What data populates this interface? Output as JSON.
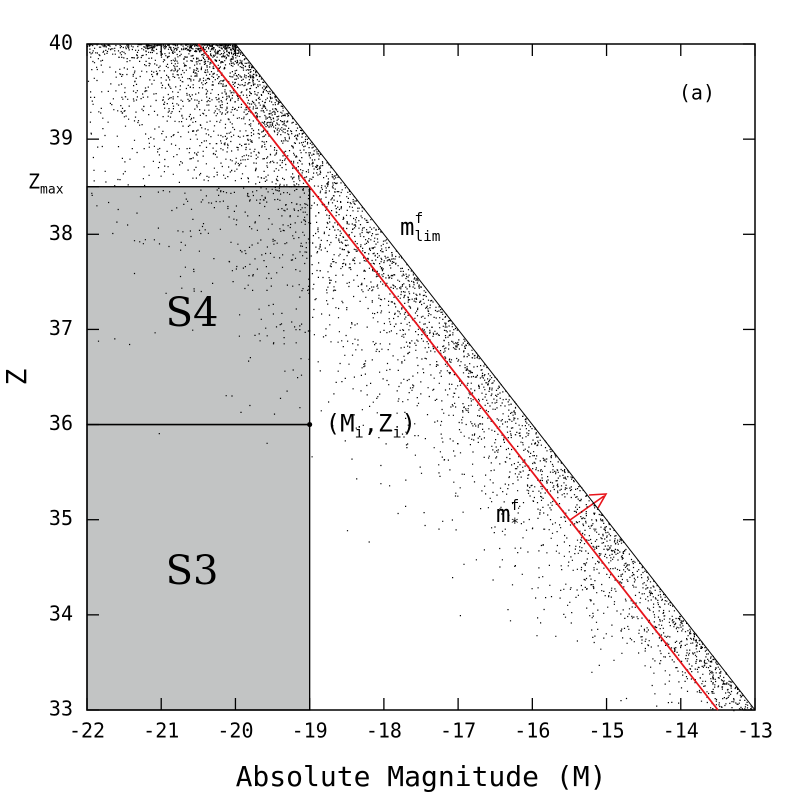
{
  "chart_data": {
    "type": "line",
    "xlabel": "Absolute Magnitude (M)",
    "ylabel": "Z",
    "panel_label": "(a)",
    "xlim": [
      -22,
      -13
    ],
    "ylim": [
      33,
      40
    ],
    "xticks": [
      -22,
      -21,
      -20,
      -19,
      -18,
      -17,
      -16,
      -15,
      -14,
      -13
    ],
    "yticks": [
      33,
      34,
      35,
      36,
      37,
      38,
      39,
      40
    ],
    "regions": [
      {
        "name": "S4",
        "x": [
          -22,
          -19
        ],
        "y": [
          36,
          38.5
        ]
      },
      {
        "name": "S3",
        "x": [
          -22,
          -19
        ],
        "y": [
          33,
          36
        ]
      }
    ],
    "zmax": {
      "value": 38.5,
      "base": "Z",
      "sub": "max"
    },
    "point": {
      "x": -19,
      "y": 36,
      "parts": [
        "(M",
        "i",
        ",Z",
        "i",
        ")"
      ]
    },
    "series": [
      {
        "label": {
          "base": "m",
          "sup": "f",
          "sub": "lim"
        },
        "color": "#000000",
        "x": [
          -20,
          -13
        ],
        "y": [
          40,
          33
        ]
      },
      {
        "label": {
          "base": "m",
          "sup": "f",
          "sub": "*"
        },
        "color": "#e8141b",
        "x": [
          -20.5,
          -13.5
        ],
        "y": [
          40,
          33
        ]
      }
    ]
  }
}
